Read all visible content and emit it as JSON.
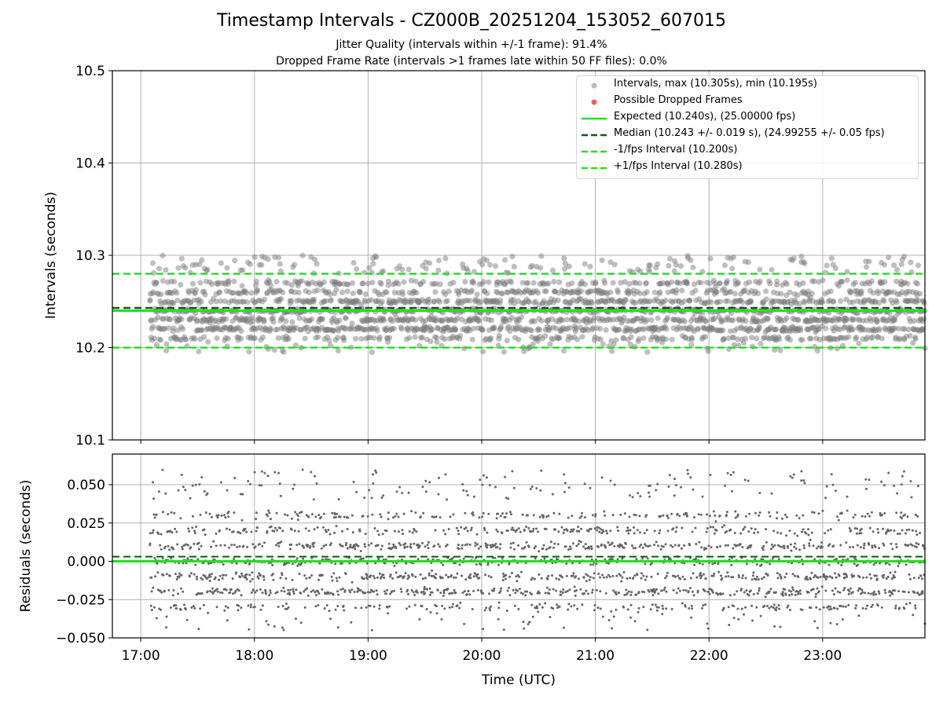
{
  "title": "Timestamp Intervals - CZ000B_20251204_153052_607015",
  "subtitle_jitter": "Jitter Quality (intervals within +/-1 frame): 91.4%",
  "subtitle_dropped": "Dropped Frame Rate (intervals >1 frames late within 50 FF files): 0.0%",
  "colors": {
    "intervals": "#808080",
    "dropped": "#ff5a5a",
    "expected": "#22e022",
    "median": "#006400",
    "fps_bound": "#22e022",
    "grid": "#b0b0b0"
  },
  "legend": {
    "intervals": "Intervals, max (10.305s), min (10.195s)",
    "dropped": "Possible Dropped Frames",
    "expected": "Expected (10.240s), (25.00000 fps)",
    "median": "Median (10.243 +/- 0.019 s), (24.99255 +/- 0.05 fps)",
    "minus_fps": "-1/fps Interval (10.200s)",
    "plus_fps": "+1/fps Interval (10.280s)"
  },
  "chart_data": [
    {
      "type": "scatter",
      "name": "intervals",
      "ylabel": "Intervals (seconds)",
      "ylim": [
        10.1,
        10.5
      ],
      "yticks": [
        10.1,
        10.2,
        10.3,
        10.4,
        10.5
      ],
      "ytick_labels": [
        "10.1",
        "10.2",
        "10.3",
        "10.4",
        "10.5"
      ],
      "xlim_hours": [
        16.75,
        23.9
      ],
      "grid": true,
      "n_points": 2450,
      "x_start_hours": 17.08,
      "x_end_hours": 23.9,
      "max_interval": 10.305,
      "min_interval": 10.195,
      "expected": 10.24,
      "median": 10.243,
      "median_std": 0.019,
      "minus_fps_interval": 10.2,
      "plus_fps_interval": 10.28,
      "quantized_levels": [
        10.21,
        10.22,
        10.23,
        10.24,
        10.25,
        10.26,
        10.27
      ],
      "dropped_frames": []
    },
    {
      "type": "scatter",
      "name": "residuals",
      "ylabel": "Residuals (seconds)",
      "xlabel": "Time (UTC)",
      "ylim": [
        -0.05,
        0.07
      ],
      "yticks": [
        -0.05,
        -0.025,
        0.0,
        0.025,
        0.05
      ],
      "ytick_labels": [
        "−0.050",
        "−0.025",
        "0.000",
        "0.025",
        "0.050"
      ],
      "xlim_hours": [
        16.75,
        23.9
      ],
      "xticks_hours": [
        17,
        18,
        19,
        20,
        21,
        22,
        23
      ],
      "xtick_labels": [
        "17:00",
        "18:00",
        "19:00",
        "20:00",
        "21:00",
        "22:00",
        "23:00"
      ],
      "zero_line": 0.0,
      "median_offset": 0.003,
      "grid": true
    }
  ]
}
